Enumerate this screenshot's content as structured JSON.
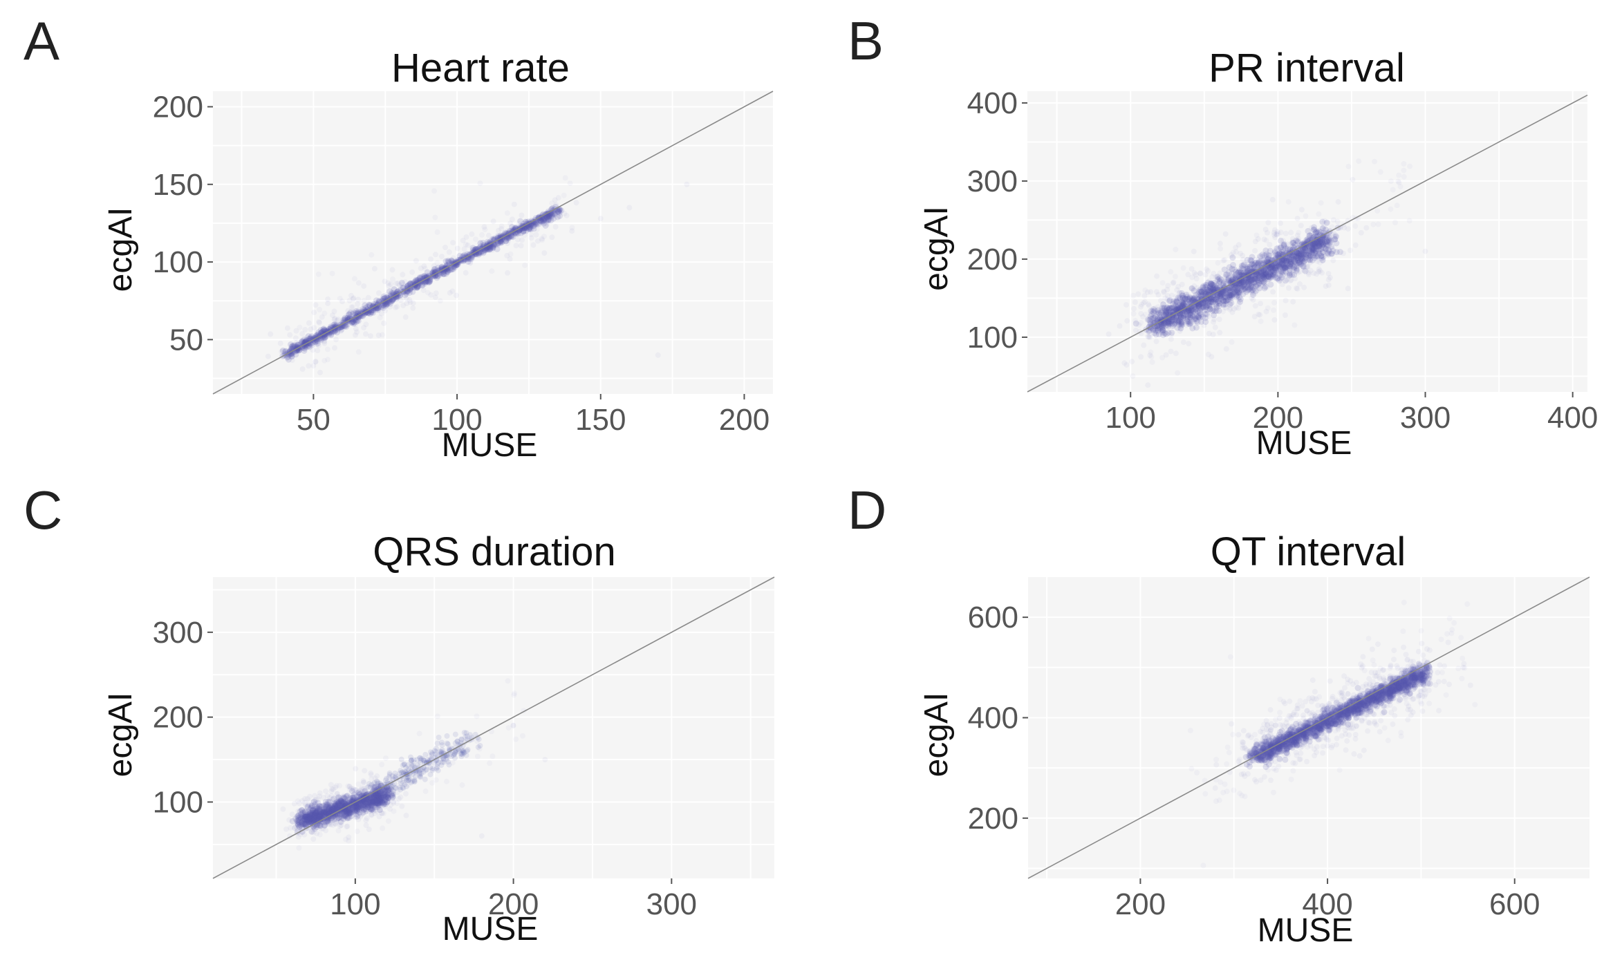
{
  "colors": {
    "points": "#5558b0",
    "identity_line": "#8a8a8a",
    "panel_bg": "#f5f5f5",
    "grid": "#ffffff"
  },
  "chart_data": [
    {
      "type": "scatter",
      "panel": "A",
      "title": "Heart rate",
      "xlabel": "MUSE",
      "ylabel": "ecgAI",
      "xlim": [
        15,
        210
      ],
      "ylim": [
        15,
        210
      ],
      "xticks": [
        50,
        100,
        150,
        200
      ],
      "yticks": [
        50,
        100,
        150,
        200
      ],
      "identity_line": true,
      "grid": true,
      "cloud": {
        "x_range": [
          40,
          145
        ],
        "y_range": [
          40,
          145
        ],
        "relation": "y ≈ x (tight band, slight underestimate above 100)",
        "core_segments": [
          [
            40,
            40
          ],
          [
            70,
            70
          ],
          [
            100,
            100
          ],
          [
            120,
            119
          ],
          [
            135,
            133
          ]
        ]
      }
    },
    {
      "type": "scatter",
      "panel": "B",
      "title": "PR interval",
      "xlabel": "MUSE",
      "ylabel": "ecgAI",
      "xlim": [
        30,
        410
      ],
      "ylim": [
        30,
        415
      ],
      "xticks": [
        100,
        200,
        300,
        400
      ],
      "yticks": [
        100,
        200,
        300,
        400
      ],
      "identity_line": true,
      "grid": true,
      "cloud": {
        "x_range": [
          100,
          290
        ],
        "y_range": [
          65,
          260
        ],
        "relation": "y ≈ x (dense core 115–230)",
        "core_segments": [
          [
            115,
            115
          ],
          [
            150,
            150
          ],
          [
            200,
            195
          ],
          [
            235,
            225
          ]
        ]
      }
    },
    {
      "type": "scatter",
      "panel": "C",
      "title": "QRS duration",
      "xlabel": "MUSE",
      "ylabel": "ecgAI",
      "xlim": [
        10,
        365
      ],
      "ylim": [
        10,
        365
      ],
      "xticks": [
        100,
        200,
        300
      ],
      "yticks": [
        100,
        200,
        300
      ],
      "identity_line": true,
      "grid": true,
      "cloud": {
        "x_range": [
          60,
          210
        ],
        "y_range": [
          65,
          210
        ],
        "relation": "dense blob near 70–110, thinner band up to ~170",
        "core_segments": [
          [
            65,
            78
          ],
          [
            90,
            90
          ],
          [
            115,
            110
          ],
          [
            140,
            140
          ],
          [
            165,
            165
          ]
        ]
      }
    },
    {
      "type": "scatter",
      "panel": "D",
      "title": "QT interval",
      "xlabel": "MUSE",
      "ylabel": "ecgAI",
      "xlim": [
        80,
        680
      ],
      "ylim": [
        80,
        680
      ],
      "xticks": [
        200,
        400,
        600
      ],
      "yticks": [
        200,
        400,
        600
      ],
      "identity_line": true,
      "grid": true,
      "cloud": {
        "x_range": [
          250,
          560
        ],
        "y_range": [
          220,
          520
        ],
        "relation": "y ≈ x (dense core 320–500)",
        "core_segments": [
          [
            320,
            320
          ],
          [
            380,
            375
          ],
          [
            450,
            440
          ],
          [
            500,
            490
          ]
        ]
      }
    }
  ]
}
